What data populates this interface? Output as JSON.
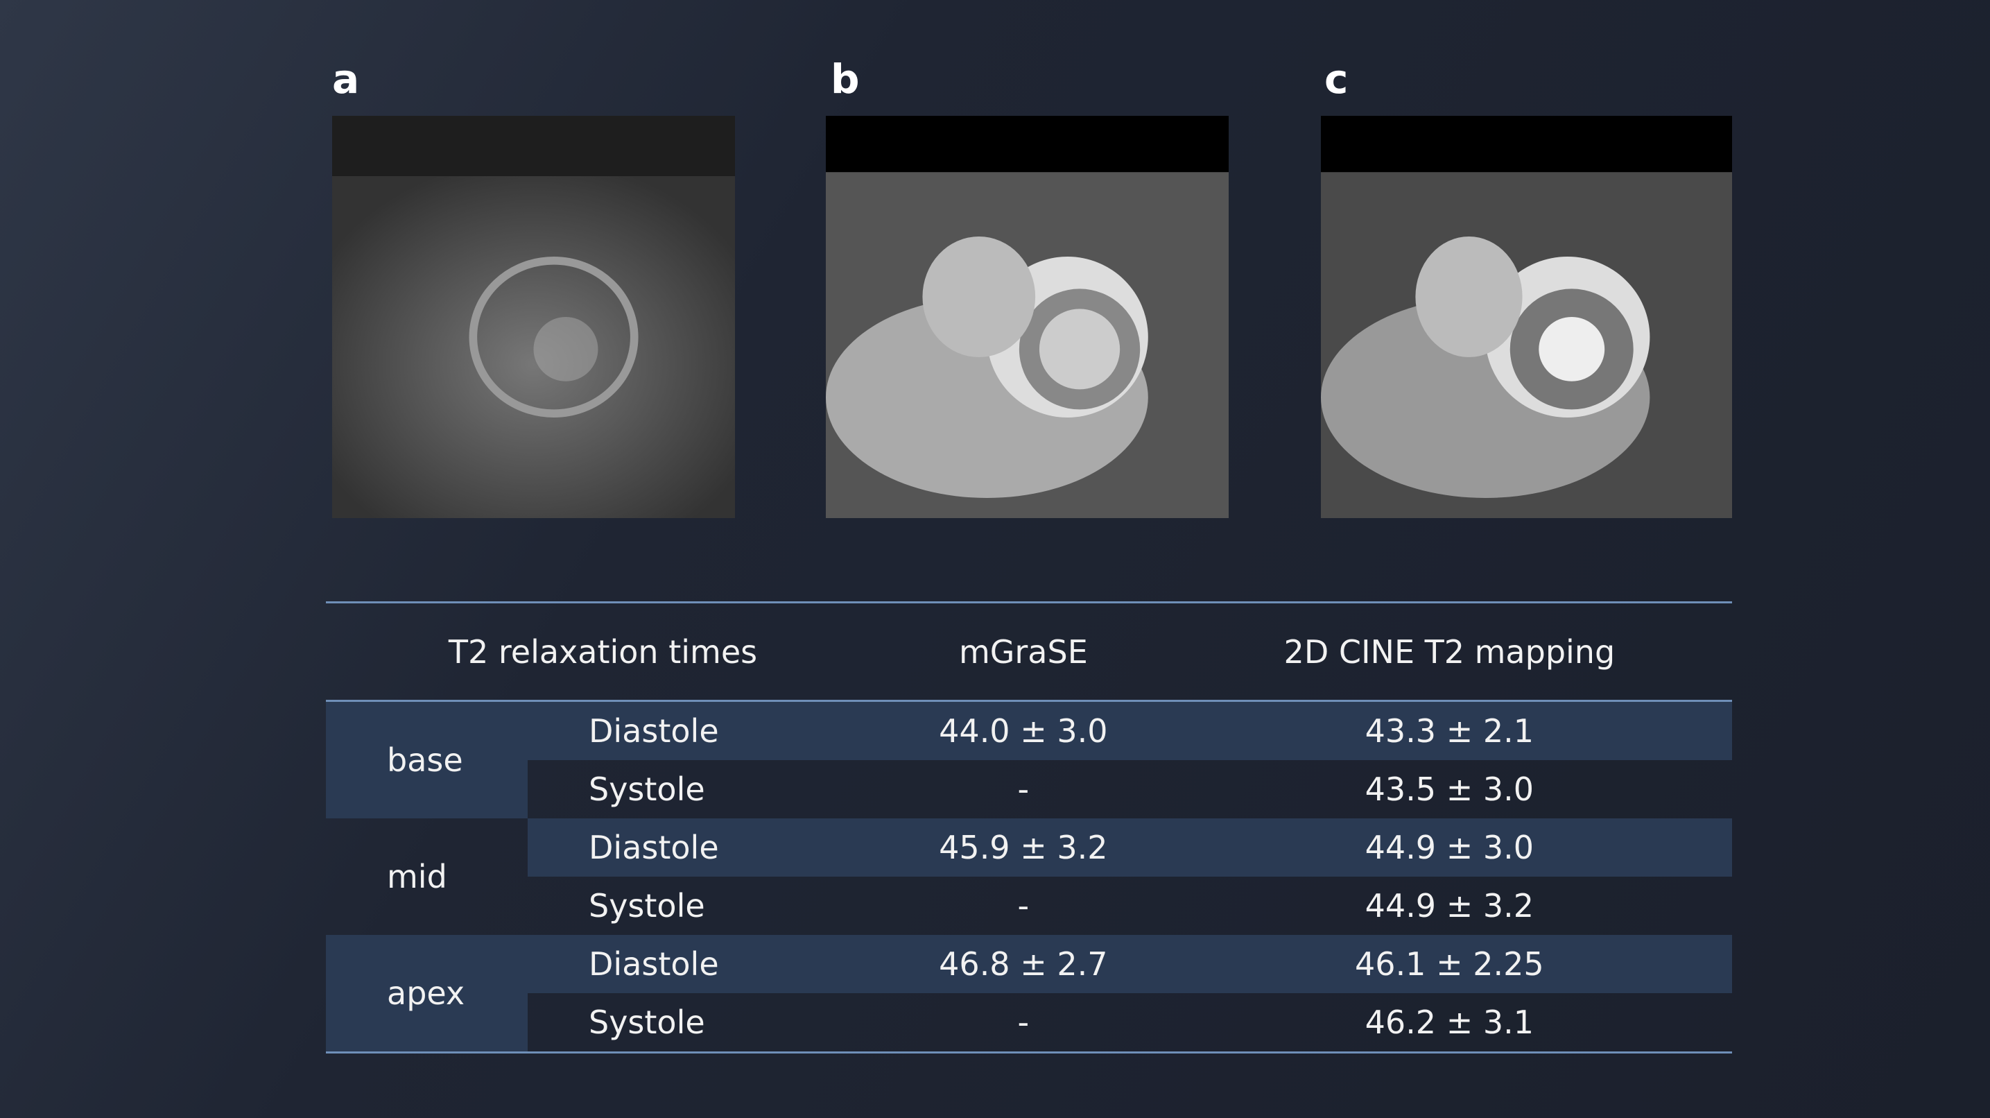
{
  "panels": [
    {
      "label": "a"
    },
    {
      "label": "b"
    },
    {
      "label": "c"
    }
  ],
  "table": {
    "header": [
      "T2 relaxation times",
      "mGraSE",
      "2D CINE T2 mapping"
    ],
    "groups": [
      {
        "name": "base",
        "rows": [
          [
            "Diastole",
            "44.0 ± 3.0",
            "43.3 ± 2.1"
          ],
          [
            "Systole",
            "-",
            "43.5 ± 3.0"
          ]
        ]
      },
      {
        "name": "mid",
        "rows": [
          [
            "Diastole",
            "45.9 ± 3.2",
            "44.9 ± 3.0"
          ],
          [
            "Systole",
            "-",
            "44.9 ± 3.2"
          ]
        ]
      },
      {
        "name": "apex",
        "rows": [
          [
            "Diastole",
            "46.8 ± 2.7",
            "46.1 ± 2.25"
          ],
          [
            "Systole",
            "-",
            "46.2 ± 3.1"
          ]
        ]
      }
    ]
  }
}
